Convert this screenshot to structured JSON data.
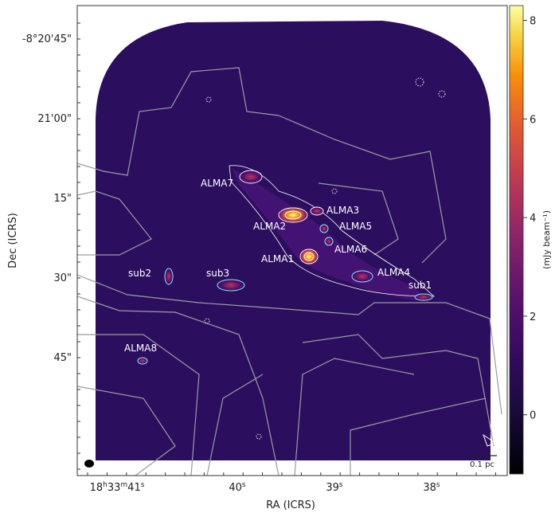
{
  "chart_data": {
    "type": "heatmap",
    "xlabel": "RA (ICRS)",
    "ylabel": "Dec (ICRS)",
    "x_ticks": [
      {
        "label": "18h33m41s",
        "h": "18",
        "m": "33",
        "s": "41"
      },
      {
        "label": "40s",
        "s": "40"
      },
      {
        "label": "39s",
        "s": "39"
      },
      {
        "label": "38s",
        "s": "38"
      }
    ],
    "y_ticks": [
      "-8°20'45\"",
      "21'00\"",
      "15\"",
      "30\"",
      "45\""
    ],
    "colorbar": {
      "label": "(mJy beam⁻¹)",
      "range": [
        -1.2,
        8.3
      ],
      "ticks": [
        "0",
        "2",
        "4",
        "6",
        "8"
      ],
      "colormap": "inferno"
    },
    "annotations": [
      "ALMA7",
      "ALMA3",
      "ALMA2",
      "ALMA5",
      "ALMA6",
      "ALMA1",
      "ALMA4",
      "sub1",
      "sub2",
      "sub3",
      "ALMA8"
    ],
    "scalebar": "0.1 pc",
    "grid": false,
    "colors": {
      "background_map": "#2b0f5e",
      "contour_white": "#ffffff",
      "contour_gray": "#9a9aa6",
      "contour_cyan": "#8fe3ff"
    }
  }
}
